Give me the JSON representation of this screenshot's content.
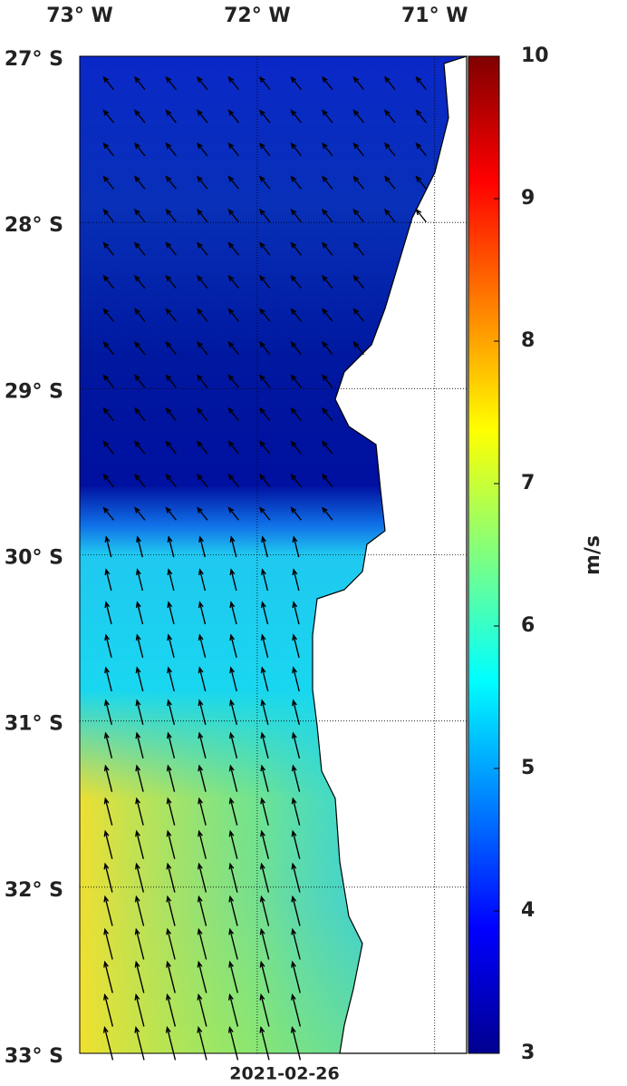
{
  "map": {
    "lon_lim": [
      -73,
      -70.82
    ],
    "lat_lim": [
      -27,
      -33
    ],
    "lon_ticks": [
      {
        "value": -73,
        "label": "73° W"
      },
      {
        "value": -72,
        "label": "72° W"
      },
      {
        "value": -71,
        "label": "71° W"
      }
    ],
    "lat_ticks": [
      {
        "value": -27,
        "label": "27° S"
      },
      {
        "value": -28,
        "label": "28° S"
      },
      {
        "value": -29,
        "label": "29° S"
      },
      {
        "value": -30,
        "label": "30° S"
      },
      {
        "value": -31,
        "label": "31° S"
      },
      {
        "value": -32,
        "label": "32° S"
      },
      {
        "value": -33,
        "label": "33° S"
      }
    ],
    "date": "2021-02-26"
  },
  "colorbar": {
    "lim": [
      3,
      10
    ],
    "ticks": [
      3,
      4,
      5,
      6,
      7,
      8,
      9,
      10
    ],
    "label": "m/s"
  }
}
